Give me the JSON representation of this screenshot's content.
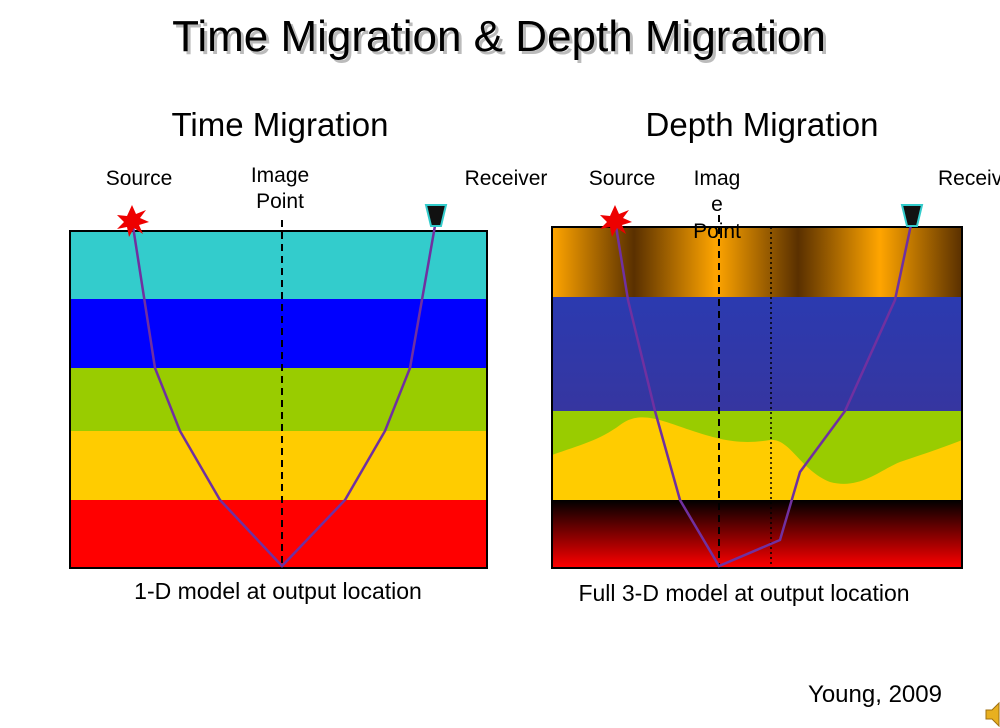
{
  "title": "Time Migration & Depth Migration",
  "panels": [
    {
      "heading": "Time Migration",
      "source": "Source",
      "image_point": [
        "Image",
        "Point"
      ],
      "receiver": "Receiver",
      "caption": "1-D model at output location"
    },
    {
      "heading": "Depth Migration",
      "source": "Source",
      "image_point": [
        "Imag",
        "e",
        "Point"
      ],
      "receiver": "Receiver",
      "caption": "Full 3-D model at output location"
    }
  ],
  "credit": "Young, 2009"
}
